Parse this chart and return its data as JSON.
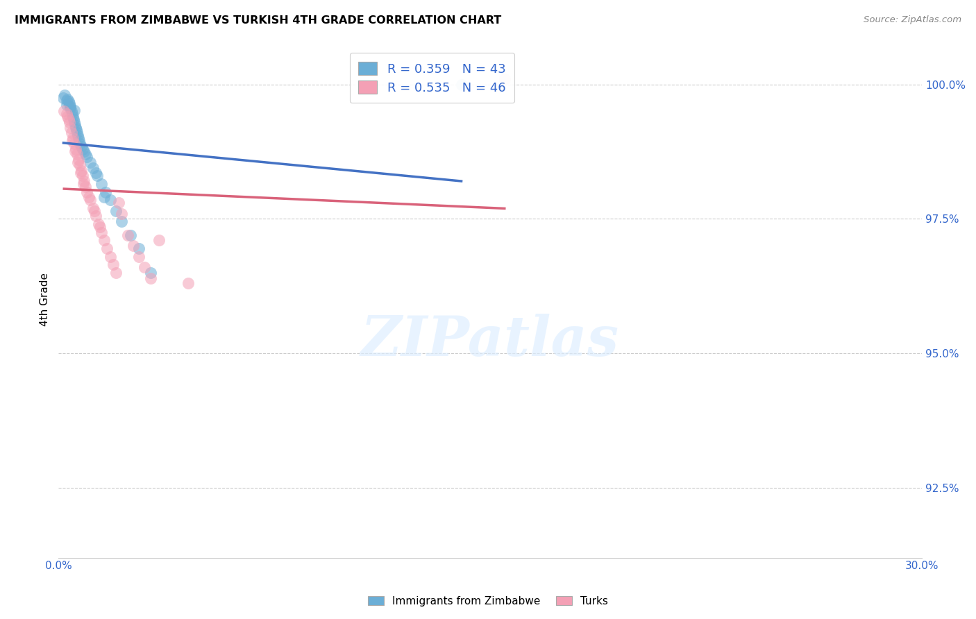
{
  "title": "IMMIGRANTS FROM ZIMBABWE VS TURKISH 4TH GRADE CORRELATION CHART",
  "source": "Source: ZipAtlas.com",
  "ylabel": "4th Grade",
  "xmin": 0.0,
  "xmax": 30.0,
  "ymin": 91.2,
  "ymax": 100.8,
  "yticks": [
    92.5,
    95.0,
    97.5,
    100.0
  ],
  "ytick_labels": [
    "92.5%",
    "95.0%",
    "97.5%",
    "100.0%"
  ],
  "r_blue": 0.359,
  "n_blue": 43,
  "r_pink": 0.535,
  "n_pink": 46,
  "legend_label_blue": "Immigrants from Zimbabwe",
  "legend_label_pink": "Turks",
  "color_blue": "#6baed6",
  "color_pink": "#f4a0b5",
  "color_blue_line": "#4472c4",
  "color_pink_line": "#d9627a",
  "blue_x": [
    0.18,
    0.22,
    0.28,
    0.32,
    0.35,
    0.38,
    0.4,
    0.42,
    0.45,
    0.48,
    0.5,
    0.52,
    0.55,
    0.58,
    0.6,
    0.62,
    0.65,
    0.68,
    0.7,
    0.72,
    0.75,
    0.8,
    0.85,
    0.9,
    0.95,
    1.0,
    1.1,
    1.2,
    1.35,
    1.5,
    1.65,
    1.8,
    2.0,
    2.2,
    2.5,
    2.8,
    1.3,
    1.6,
    0.3,
    0.4,
    0.55,
    3.2,
    14.0
  ],
  "blue_y": [
    99.75,
    99.8,
    99.7,
    99.72,
    99.68,
    99.65,
    99.6,
    99.55,
    99.5,
    99.45,
    99.4,
    99.35,
    99.3,
    99.25,
    99.2,
    99.15,
    99.1,
    99.05,
    99.0,
    98.95,
    98.9,
    98.85,
    98.8,
    98.75,
    98.7,
    98.65,
    98.55,
    98.45,
    98.3,
    98.15,
    98.0,
    97.85,
    97.65,
    97.45,
    97.2,
    96.95,
    98.35,
    97.9,
    99.62,
    99.58,
    99.52,
    96.5,
    100.0
  ],
  "pink_x": [
    0.2,
    0.28,
    0.32,
    0.38,
    0.42,
    0.45,
    0.5,
    0.55,
    0.6,
    0.65,
    0.7,
    0.75,
    0.8,
    0.85,
    0.9,
    0.95,
    1.0,
    1.1,
    1.2,
    1.3,
    1.4,
    1.5,
    1.6,
    1.7,
    1.8,
    1.9,
    2.0,
    2.1,
    2.2,
    2.4,
    2.6,
    2.8,
    3.0,
    3.2,
    0.35,
    0.48,
    0.58,
    0.68,
    0.78,
    0.88,
    1.05,
    1.25,
    1.45,
    3.5,
    4.5,
    15.5
  ],
  "pink_y": [
    99.5,
    99.45,
    99.4,
    99.3,
    99.2,
    99.1,
    99.0,
    98.9,
    98.8,
    98.7,
    98.6,
    98.5,
    98.4,
    98.3,
    98.2,
    98.1,
    98.0,
    97.85,
    97.7,
    97.55,
    97.4,
    97.25,
    97.1,
    96.95,
    96.8,
    96.65,
    96.5,
    97.8,
    97.6,
    97.2,
    97.0,
    96.8,
    96.6,
    96.4,
    99.35,
    98.95,
    98.75,
    98.55,
    98.35,
    98.15,
    97.9,
    97.65,
    97.35,
    97.1,
    96.3,
    100.1
  ]
}
